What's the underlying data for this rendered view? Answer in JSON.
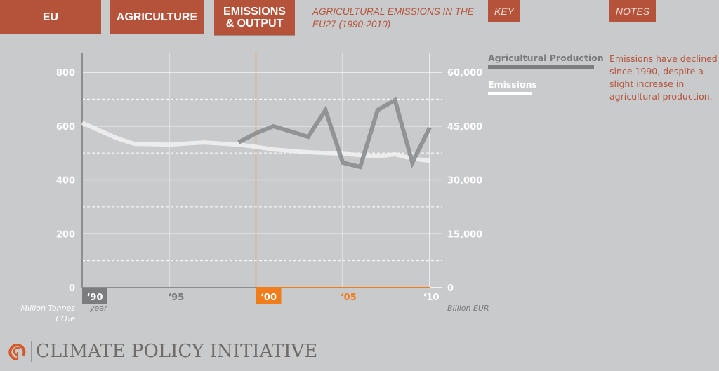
{
  "tabs": [
    {
      "label": "EU"
    },
    {
      "label": "AGRICULTURE"
    },
    {
      "label": "EMISSIONS & OUTPUT",
      "line1": "EMISSIONS",
      "line2": "& OUTPUT"
    }
  ],
  "subtitle": {
    "line1": "AGRICULTURAL EMISSIONS IN THE",
    "line2": "EU27 (1990-2010)"
  },
  "key_tab": "KEY",
  "notes_tab": "NOTES",
  "key": {
    "production_label": "Agricultural Production",
    "emissions_label": "Emissions"
  },
  "notes_text": "Emissions have declined since 1990, despite a slight increase in agricultural production.",
  "logo_text": "CLIMATE POLICY INITIATIVE",
  "colors": {
    "accent": "#b5533a",
    "orange": "#f07d1a",
    "production": "#8c8d8f",
    "emissions": "#f2f2f2",
    "background": "#c9cacc"
  },
  "chart_data": {
    "type": "line",
    "title": "Agricultural Emissions in the EU27 (1990-2010)",
    "xlabel": "year",
    "ylabel_left": "Million Tonnes",
    "ylabel_left2": "CO₂e",
    "ylabel_right": "Billion EUR",
    "xlim": [
      1990,
      2010
    ],
    "ylim_left": [
      0,
      800
    ],
    "ylim_right": [
      0,
      60000
    ],
    "x_ticks": [
      {
        "value": 1990,
        "label": "‘90"
      },
      {
        "value": 1995,
        "label": "‘95"
      },
      {
        "value": 2000,
        "label": "‘00"
      },
      {
        "value": 2005,
        "label": "‘05"
      },
      {
        "value": 2010,
        "label": "‘10"
      }
    ],
    "left_ticks": [
      {
        "value": 0,
        "label": "0"
      },
      {
        "value": 200,
        "label": "200"
      },
      {
        "value": 400,
        "label": "400"
      },
      {
        "value": 600,
        "label": "600"
      },
      {
        "value": 800,
        "label": "800"
      }
    ],
    "right_ticks": [
      {
        "value": 0,
        "label": "0"
      },
      {
        "value": 15000,
        "label": "15,000"
      },
      {
        "value": 30000,
        "label": "30,000"
      },
      {
        "value": 45000,
        "label": "45,000"
      },
      {
        "value": 60000,
        "label": "60,000"
      }
    ],
    "grid": true,
    "series": [
      {
        "name": "Emissions",
        "axis": "left",
        "x": [
          1990,
          1992,
          1993,
          1995,
          1997,
          1999,
          2000,
          2001,
          2003,
          2005,
          2007,
          2008,
          2009,
          2010
        ],
        "values": [
          612,
          555,
          534,
          531,
          539,
          531,
          523,
          513,
          503,
          497,
          487,
          495,
          479,
          471
        ]
      },
      {
        "name": "Agricultural Production",
        "axis": "right",
        "x": [
          1999,
          2000,
          2001,
          2002,
          2003,
          2004,
          2005,
          2006,
          2007,
          2008,
          2009,
          2010
        ],
        "values": [
          40450,
          43000,
          44950,
          43500,
          42000,
          49450,
          34800,
          33600,
          49450,
          52200,
          34800,
          44560
        ]
      }
    ]
  }
}
